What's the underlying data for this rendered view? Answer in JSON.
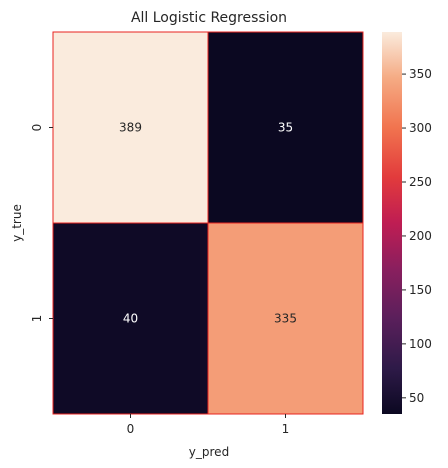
{
  "chart_data": {
    "type": "heatmap",
    "title": "All Logistic Regression",
    "xlabel": "y_pred",
    "ylabel": "y_true",
    "x_categories": [
      "0",
      "1"
    ],
    "y_categories": [
      "0",
      "1"
    ],
    "values": [
      [
        389,
        35
      ],
      [
        40,
        335
      ]
    ],
    "colorbar": {
      "min": 35,
      "max": 389,
      "ticks": [
        50,
        100,
        150,
        200,
        250,
        300,
        350
      ],
      "colormap": "rocket"
    },
    "cell_edge_color": "#e8231f",
    "annotation_dark_text": "#262626",
    "annotation_light_text": "#ffffff"
  }
}
